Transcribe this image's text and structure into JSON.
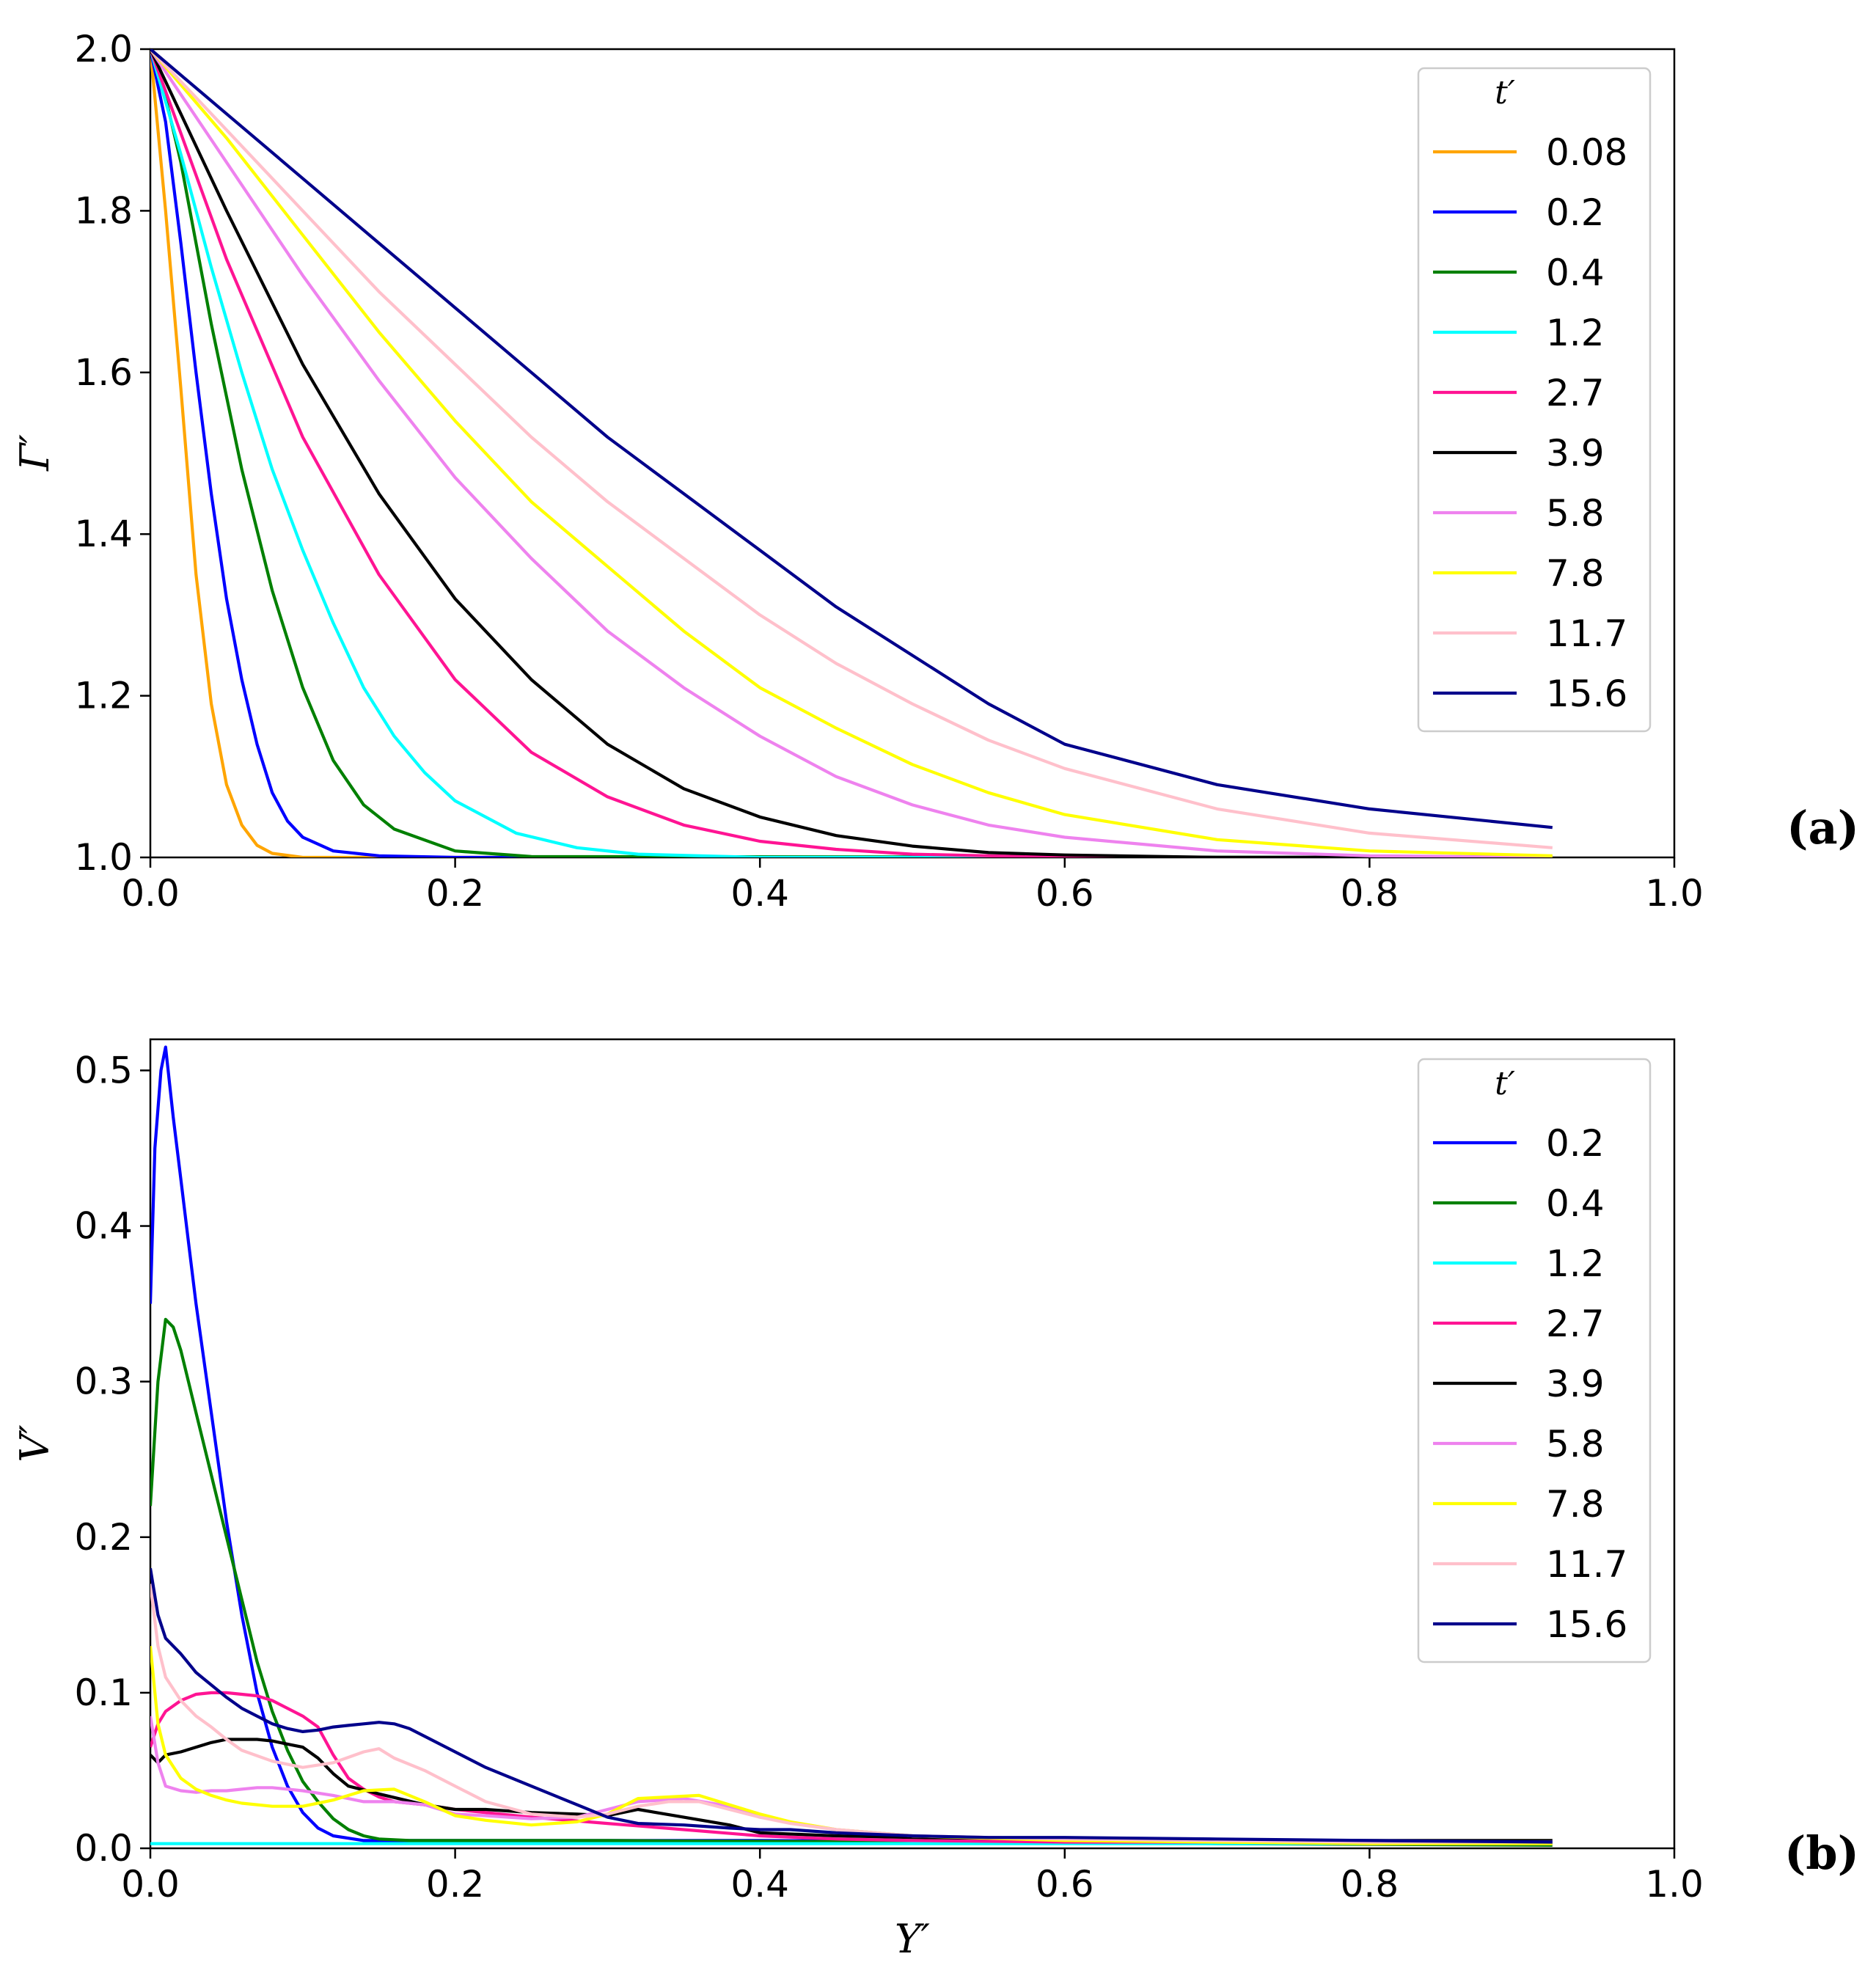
{
  "chart_data": [
    {
      "type": "line",
      "panel_label": "(a)",
      "xlabel": "",
      "ylabel": "Γ′",
      "xlim": [
        0.0,
        1.0
      ],
      "ylim": [
        1.0,
        2.0
      ],
      "xticks": [
        "0.0",
        "0.2",
        "0.4",
        "0.6",
        "0.8",
        "1.0"
      ],
      "yticks": [
        "1.0",
        "1.2",
        "1.4",
        "1.6",
        "1.8",
        "2.0"
      ],
      "legend_title": "t′",
      "legend_position": "top-right",
      "series": [
        {
          "name": "0.08",
          "color": "#FFA500",
          "x": [
            0,
            0.01,
            0.02,
            0.03,
            0.04,
            0.05,
            0.06,
            0.07,
            0.08,
            0.1,
            0.12,
            0.15,
            0.92
          ],
          "y": [
            2.0,
            1.8,
            1.58,
            1.35,
            1.19,
            1.09,
            1.04,
            1.015,
            1.005,
            1.0,
            1.0,
            1.0,
            1.0
          ]
        },
        {
          "name": "0.2",
          "color": "#0000FF",
          "x": [
            0,
            0.01,
            0.02,
            0.03,
            0.04,
            0.05,
            0.06,
            0.07,
            0.08,
            0.09,
            0.1,
            0.12,
            0.15,
            0.2,
            0.92
          ],
          "y": [
            2.0,
            1.91,
            1.76,
            1.6,
            1.45,
            1.32,
            1.22,
            1.14,
            1.08,
            1.045,
            1.025,
            1.008,
            1.002,
            1.0,
            1.0
          ]
        },
        {
          "name": "0.4",
          "color": "#008000",
          "x": [
            0,
            0.01,
            0.02,
            0.03,
            0.04,
            0.05,
            0.06,
            0.08,
            0.1,
            0.12,
            0.14,
            0.16,
            0.2,
            0.25,
            0.92
          ],
          "y": [
            2.0,
            1.94,
            1.86,
            1.76,
            1.66,
            1.57,
            1.48,
            1.33,
            1.21,
            1.12,
            1.065,
            1.035,
            1.008,
            1.001,
            1.0
          ]
        },
        {
          "name": "1.2",
          "color": "#00FFFF",
          "x": [
            0,
            0.02,
            0.04,
            0.06,
            0.08,
            0.1,
            0.12,
            0.14,
            0.16,
            0.18,
            0.2,
            0.24,
            0.28,
            0.32,
            0.4,
            0.92
          ],
          "y": [
            2.0,
            1.87,
            1.73,
            1.6,
            1.48,
            1.38,
            1.29,
            1.21,
            1.15,
            1.105,
            1.07,
            1.03,
            1.012,
            1.004,
            1.0,
            1.0
          ]
        },
        {
          "name": "2.7",
          "color": "#FF1493",
          "x": [
            0,
            0.05,
            0.1,
            0.15,
            0.2,
            0.25,
            0.3,
            0.35,
            0.4,
            0.45,
            0.5,
            0.55,
            0.6,
            0.7,
            0.92
          ],
          "y": [
            2.0,
            1.74,
            1.52,
            1.35,
            1.22,
            1.13,
            1.075,
            1.04,
            1.02,
            1.01,
            1.004,
            1.002,
            1.0,
            1.0,
            1.0
          ]
        },
        {
          "name": "3.9",
          "color": "#000000",
          "x": [
            0,
            0.05,
            0.1,
            0.15,
            0.2,
            0.25,
            0.3,
            0.35,
            0.4,
            0.45,
            0.5,
            0.55,
            0.6,
            0.7,
            0.92
          ],
          "y": [
            2.0,
            1.8,
            1.61,
            1.45,
            1.32,
            1.22,
            1.14,
            1.085,
            1.05,
            1.027,
            1.014,
            1.006,
            1.003,
            1.0,
            1.0
          ]
        },
        {
          "name": "5.8",
          "color": "#EE82EE",
          "x": [
            0,
            0.05,
            0.1,
            0.15,
            0.2,
            0.25,
            0.3,
            0.35,
            0.4,
            0.45,
            0.5,
            0.55,
            0.6,
            0.7,
            0.8,
            0.92
          ],
          "y": [
            2.0,
            1.86,
            1.72,
            1.59,
            1.47,
            1.37,
            1.28,
            1.21,
            1.15,
            1.1,
            1.065,
            1.04,
            1.025,
            1.008,
            1.002,
            1.0
          ]
        },
        {
          "name": "7.8",
          "color": "#FFFF00",
          "x": [
            0,
            0.05,
            0.1,
            0.15,
            0.2,
            0.25,
            0.3,
            0.35,
            0.4,
            0.45,
            0.5,
            0.55,
            0.6,
            0.7,
            0.8,
            0.92
          ],
          "y": [
            2.0,
            1.89,
            1.77,
            1.65,
            1.54,
            1.44,
            1.36,
            1.28,
            1.21,
            1.16,
            1.115,
            1.08,
            1.053,
            1.022,
            1.008,
            1.002
          ]
        },
        {
          "name": "11.7",
          "color": "#FFC0CB",
          "x": [
            0,
            0.05,
            0.1,
            0.15,
            0.2,
            0.25,
            0.3,
            0.35,
            0.4,
            0.45,
            0.5,
            0.55,
            0.6,
            0.7,
            0.8,
            0.92
          ],
          "y": [
            2.0,
            1.9,
            1.8,
            1.7,
            1.61,
            1.52,
            1.44,
            1.37,
            1.3,
            1.24,
            1.19,
            1.145,
            1.11,
            1.06,
            1.03,
            1.012
          ]
        },
        {
          "name": "15.6",
          "color": "#00008B",
          "x": [
            0,
            0.05,
            0.1,
            0.15,
            0.2,
            0.25,
            0.3,
            0.35,
            0.4,
            0.45,
            0.5,
            0.55,
            0.6,
            0.7,
            0.8,
            0.92
          ],
          "y": [
            2.0,
            1.92,
            1.84,
            1.76,
            1.68,
            1.6,
            1.52,
            1.45,
            1.38,
            1.31,
            1.25,
            1.19,
            1.14,
            1.09,
            1.06,
            1.037
          ]
        }
      ]
    },
    {
      "type": "line",
      "panel_label": "(b)",
      "xlabel": "Y′",
      "ylabel": "V′",
      "xlim": [
        0.0,
        1.0
      ],
      "ylim": [
        0.0,
        0.52
      ],
      "xticks": [
        "0.0",
        "0.2",
        "0.4",
        "0.6",
        "0.8",
        "1.0"
      ],
      "yticks": [
        "0.0",
        "0.1",
        "0.2",
        "0.3",
        "0.4",
        "0.5"
      ],
      "legend_title": "t′",
      "legend_position": "top-right",
      "series": [
        {
          "name": "0.2",
          "color": "#0000FF",
          "x": [
            0,
            0.003,
            0.007,
            0.01,
            0.015,
            0.02,
            0.025,
            0.03,
            0.04,
            0.05,
            0.06,
            0.07,
            0.08,
            0.09,
            0.1,
            0.11,
            0.12,
            0.14,
            0.2,
            0.4,
            0.6,
            0.92
          ],
          "y": [
            0.35,
            0.45,
            0.5,
            0.515,
            0.47,
            0.43,
            0.39,
            0.35,
            0.28,
            0.21,
            0.15,
            0.1,
            0.065,
            0.04,
            0.023,
            0.013,
            0.008,
            0.005,
            0.005,
            0.005,
            0.004,
            0.004
          ]
        },
        {
          "name": "0.4",
          "color": "#008000",
          "x": [
            0,
            0.005,
            0.01,
            0.015,
            0.02,
            0.03,
            0.04,
            0.05,
            0.06,
            0.07,
            0.08,
            0.09,
            0.1,
            0.11,
            0.12,
            0.13,
            0.14,
            0.15,
            0.17,
            0.3,
            0.5,
            0.7,
            0.92
          ],
          "y": [
            0.22,
            0.3,
            0.34,
            0.335,
            0.32,
            0.28,
            0.24,
            0.2,
            0.16,
            0.12,
            0.088,
            0.063,
            0.043,
            0.03,
            0.019,
            0.012,
            0.008,
            0.006,
            0.005,
            0.005,
            0.004,
            0.003,
            0.002
          ]
        },
        {
          "name": "1.2",
          "color": "#00FFFF",
          "x": [
            0,
            0.1,
            0.2,
            0.4,
            0.6,
            0.92
          ],
          "y": [
            0.003,
            0.003,
            0.003,
            0.003,
            0.003,
            0.003
          ]
        },
        {
          "name": "2.7",
          "color": "#FF1493",
          "x": [
            0,
            0.005,
            0.01,
            0.02,
            0.03,
            0.04,
            0.05,
            0.06,
            0.07,
            0.08,
            0.09,
            0.1,
            0.11,
            0.12,
            0.13,
            0.14,
            0.15,
            0.16,
            0.18,
            0.2,
            0.25,
            0.3,
            0.35,
            0.4,
            0.45,
            0.5,
            0.6,
            0.7,
            0.8,
            0.92
          ],
          "y": [
            0.065,
            0.08,
            0.088,
            0.095,
            0.099,
            0.1,
            0.1,
            0.099,
            0.098,
            0.095,
            0.09,
            0.085,
            0.078,
            0.06,
            0.045,
            0.038,
            0.033,
            0.03,
            0.028,
            0.025,
            0.02,
            0.016,
            0.012,
            0.008,
            0.006,
            0.005,
            0.004,
            0.004,
            0.003,
            0.003
          ]
        },
        {
          "name": "3.9",
          "color": "#000000",
          "x": [
            0,
            0.005,
            0.01,
            0.02,
            0.03,
            0.04,
            0.05,
            0.06,
            0.07,
            0.08,
            0.09,
            0.1,
            0.11,
            0.12,
            0.13,
            0.15,
            0.18,
            0.2,
            0.22,
            0.25,
            0.28,
            0.3,
            0.32,
            0.35,
            0.38,
            0.4,
            0.45,
            0.5,
            0.6,
            0.7,
            0.8,
            0.92
          ],
          "y": [
            0.06,
            0.055,
            0.06,
            0.062,
            0.065,
            0.068,
            0.07,
            0.07,
            0.07,
            0.069,
            0.067,
            0.065,
            0.058,
            0.048,
            0.04,
            0.035,
            0.028,
            0.025,
            0.025,
            0.023,
            0.022,
            0.021,
            0.025,
            0.02,
            0.015,
            0.01,
            0.008,
            0.007,
            0.006,
            0.005,
            0.005,
            0.005
          ]
        },
        {
          "name": "5.8",
          "color": "#EE82EE",
          "x": [
            0,
            0.005,
            0.01,
            0.02,
            0.03,
            0.04,
            0.05,
            0.06,
            0.07,
            0.08,
            0.1,
            0.12,
            0.14,
            0.16,
            0.18,
            0.2,
            0.22,
            0.25,
            0.28,
            0.3,
            0.32,
            0.35,
            0.38,
            0.4,
            0.45,
            0.5,
            0.6,
            0.7,
            0.8,
            0.92
          ],
          "y": [
            0.085,
            0.055,
            0.04,
            0.037,
            0.036,
            0.037,
            0.037,
            0.038,
            0.039,
            0.039,
            0.037,
            0.034,
            0.03,
            0.03,
            0.028,
            0.022,
            0.021,
            0.019,
            0.02,
            0.025,
            0.03,
            0.032,
            0.027,
            0.02,
            0.012,
            0.008,
            0.006,
            0.005,
            0.004,
            0.004
          ]
        },
        {
          "name": "7.8",
          "color": "#FFFF00",
          "x": [
            0,
            0.005,
            0.01,
            0.02,
            0.03,
            0.04,
            0.05,
            0.06,
            0.08,
            0.1,
            0.12,
            0.14,
            0.16,
            0.18,
            0.2,
            0.22,
            0.25,
            0.28,
            0.3,
            0.32,
            0.34,
            0.36,
            0.38,
            0.4,
            0.42,
            0.45,
            0.5,
            0.6,
            0.7,
            0.8,
            0.92
          ],
          "y": [
            0.13,
            0.08,
            0.06,
            0.045,
            0.038,
            0.034,
            0.031,
            0.029,
            0.027,
            0.027,
            0.031,
            0.037,
            0.038,
            0.03,
            0.021,
            0.018,
            0.015,
            0.017,
            0.022,
            0.032,
            0.033,
            0.034,
            0.028,
            0.022,
            0.017,
            0.012,
            0.008,
            0.005,
            0.004,
            0.003,
            0.003
          ]
        },
        {
          "name": "11.7",
          "color": "#FFC0CB",
          "x": [
            0,
            0.005,
            0.01,
            0.02,
            0.03,
            0.04,
            0.05,
            0.06,
            0.08,
            0.1,
            0.12,
            0.14,
            0.15,
            0.16,
            0.18,
            0.2,
            0.22,
            0.25,
            0.28,
            0.3,
            0.32,
            0.34,
            0.36,
            0.38,
            0.4,
            0.42,
            0.45,
            0.5,
            0.6,
            0.7,
            0.8,
            0.92
          ],
          "y": [
            0.17,
            0.13,
            0.11,
            0.095,
            0.085,
            0.078,
            0.07,
            0.063,
            0.056,
            0.052,
            0.055,
            0.062,
            0.064,
            0.058,
            0.05,
            0.04,
            0.03,
            0.022,
            0.02,
            0.022,
            0.027,
            0.03,
            0.03,
            0.025,
            0.02,
            0.016,
            0.012,
            0.008,
            0.006,
            0.005,
            0.004,
            0.004
          ]
        },
        {
          "name": "15.6",
          "color": "#00008B",
          "x": [
            0,
            0.005,
            0.01,
            0.02,
            0.03,
            0.04,
            0.05,
            0.06,
            0.07,
            0.08,
            0.09,
            0.1,
            0.11,
            0.12,
            0.13,
            0.14,
            0.15,
            0.16,
            0.17,
            0.18,
            0.2,
            0.22,
            0.25,
            0.28,
            0.3,
            0.32,
            0.35,
            0.38,
            0.4,
            0.42,
            0.45,
            0.5,
            0.55,
            0.6,
            0.7,
            0.8,
            0.92
          ],
          "y": [
            0.18,
            0.15,
            0.135,
            0.125,
            0.113,
            0.105,
            0.097,
            0.09,
            0.085,
            0.08,
            0.077,
            0.075,
            0.076,
            0.078,
            0.079,
            0.08,
            0.081,
            0.08,
            0.077,
            0.072,
            0.062,
            0.052,
            0.04,
            0.028,
            0.02,
            0.016,
            0.015,
            0.013,
            0.012,
            0.012,
            0.01,
            0.008,
            0.007,
            0.007,
            0.006,
            0.005,
            0.004
          ]
        }
      ]
    }
  ]
}
